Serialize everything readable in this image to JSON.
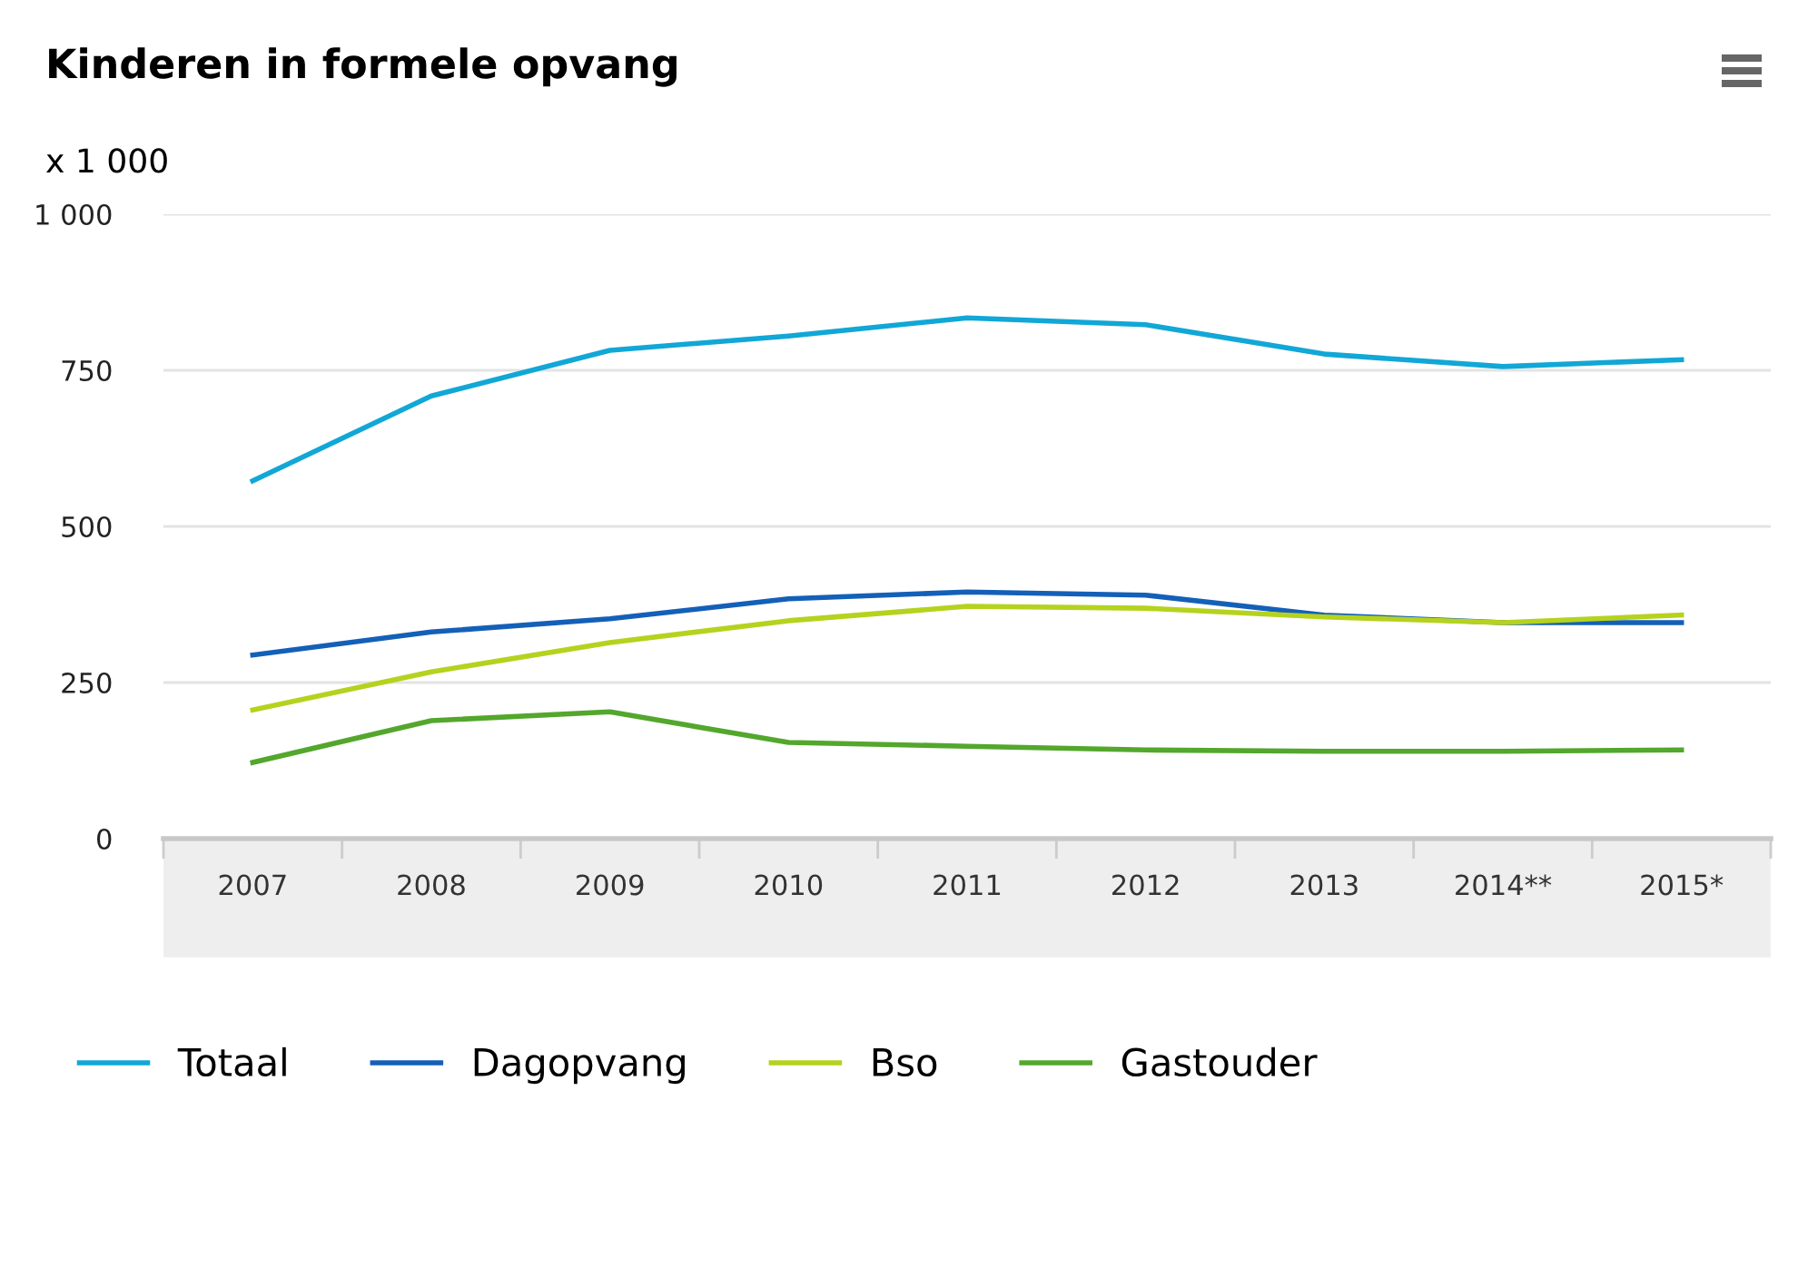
{
  "chart_data": {
    "type": "line",
    "title": "Kinderen in formele opvang",
    "ylabel": "x 1 000",
    "categories": [
      "2007",
      "2008",
      "2009",
      "2010",
      "2011",
      "2012",
      "2013",
      "2014**",
      "2015*"
    ],
    "series": [
      {
        "name": "Totaal",
        "color": "#11a7d6",
        "values": [
          573,
          709,
          782,
          805,
          834,
          823,
          776,
          756,
          767
        ]
      },
      {
        "name": "Dagopvang",
        "color": "#1460b8",
        "values": [
          294,
          331,
          352,
          384,
          395,
          390,
          358,
          346,
          346
        ]
      },
      {
        "name": "Bso",
        "color": "#b5d21e",
        "values": [
          206,
          267,
          314,
          349,
          372,
          369,
          355,
          346,
          358
        ]
      },
      {
        "name": "Gastouder",
        "color": "#53a72c",
        "values": [
          122,
          189,
          203,
          154,
          148,
          142,
          140,
          140,
          142
        ]
      }
    ],
    "ylim": [
      0,
      1000
    ],
    "yticks": [
      0,
      250,
      500,
      750,
      {
        "value": 1000,
        "label": "1 000"
      }
    ],
    "grid": "y",
    "legend": "bottom",
    "marker": "none",
    "line_style": "solid"
  }
}
